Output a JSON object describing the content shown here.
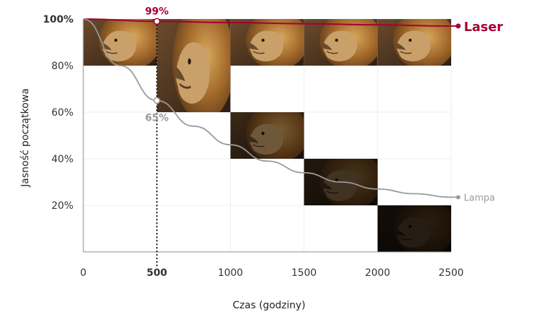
{
  "chart_data": {
    "type": "line",
    "xlabel": "Czas (godziny)",
    "ylabel": "Jasność początkowa",
    "xlim": [
      0,
      2500
    ],
    "ylim": [
      0,
      100
    ],
    "x_ticks": [
      "0",
      "500",
      "1000",
      "1500",
      "2000",
      "2500"
    ],
    "y_ticks": [
      "100%",
      "80%",
      "60%",
      "40%",
      "20%"
    ],
    "grid": true,
    "series": [
      {
        "name": "Laser",
        "color": "#a50034",
        "x": [
          0,
          500,
          1000,
          1500,
          2000,
          2500
        ],
        "values": [
          100,
          99,
          98.5,
          98,
          97.5,
          97
        ]
      },
      {
        "name": "Lampa",
        "color": "#9a9a9a",
        "x": [
          0,
          250,
          500,
          750,
          1000,
          1250,
          1500,
          1750,
          2000,
          2250,
          2500
        ],
        "values": [
          100,
          80,
          65,
          54,
          46,
          39,
          34,
          30,
          27,
          25,
          23.5
        ]
      }
    ],
    "annotations": [
      {
        "text": "99%",
        "x": 500,
        "y": 99,
        "series": "Laser"
      },
      {
        "text": "65%",
        "x": 500,
        "y": 65,
        "series": "Lampa"
      }
    ],
    "marker_x": 500,
    "brightness_panels": [
      {
        "col": 0,
        "top": 100,
        "bottom": 80,
        "brightness": 1.0
      },
      {
        "col": 1,
        "top": 100,
        "bottom": 60,
        "brightness": 1.0
      },
      {
        "col": 2,
        "top": 100,
        "bottom": 80,
        "brightness": 1.0
      },
      {
        "col": 2,
        "top": 60,
        "bottom": 40,
        "brightness": 0.55
      },
      {
        "col": 3,
        "top": 100,
        "bottom": 80,
        "brightness": 1.0
      },
      {
        "col": 3,
        "top": 40,
        "bottom": 20,
        "brightness": 0.32
      },
      {
        "col": 4,
        "top": 100,
        "bottom": 80,
        "brightness": 1.0
      },
      {
        "col": 4,
        "top": 20,
        "bottom": 0,
        "brightness": 0.18
      }
    ]
  }
}
